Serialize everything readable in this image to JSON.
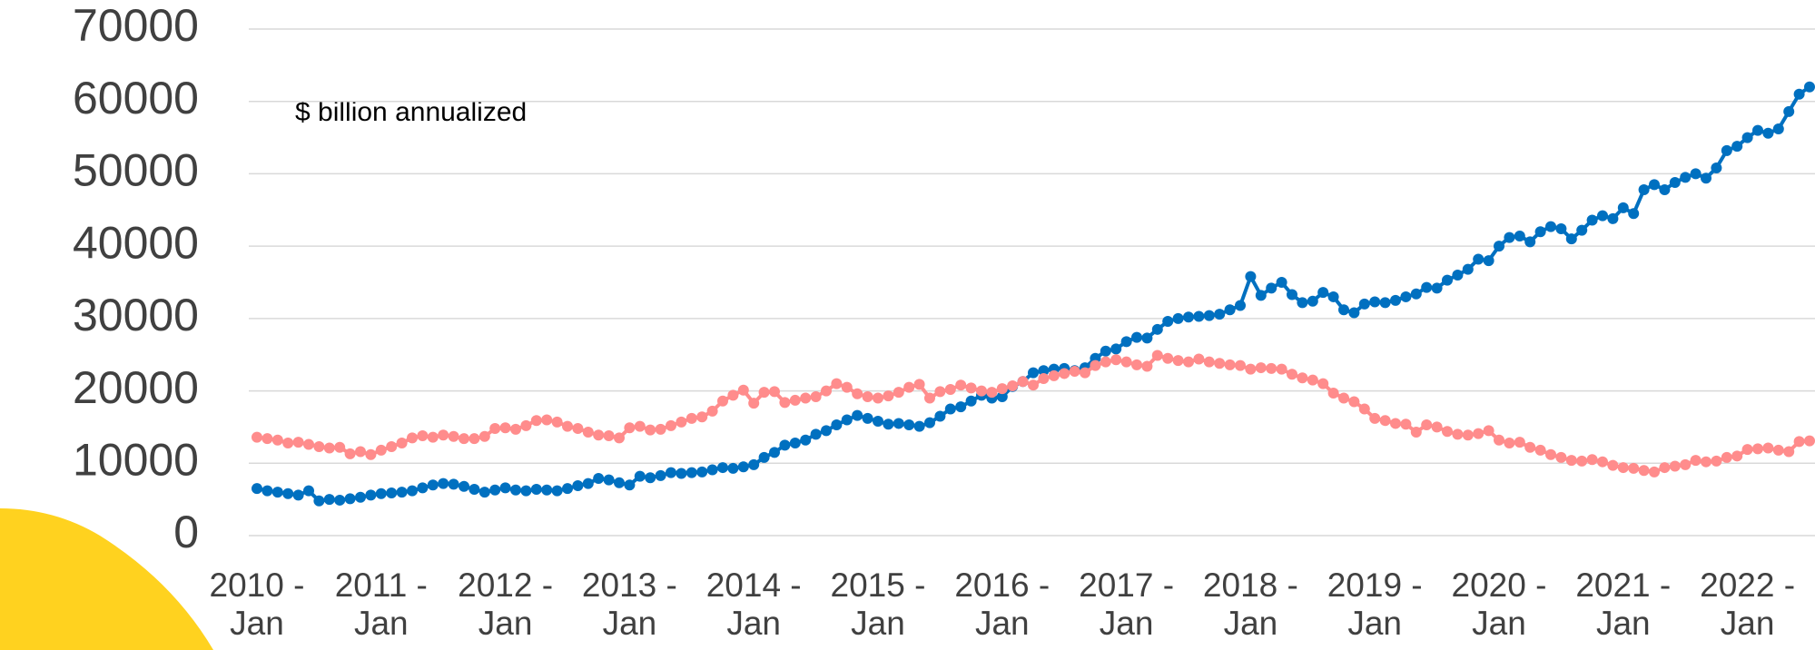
{
  "chart_data": {
    "type": "line",
    "annotation": "$ billion annualized",
    "categories": [
      "2010 - Jan",
      null,
      null,
      null,
      null,
      null,
      null,
      null,
      null,
      null,
      null,
      null,
      "2011 - Jan",
      null,
      null,
      null,
      null,
      null,
      null,
      null,
      null,
      null,
      null,
      null,
      "2012 - Jan",
      null,
      null,
      null,
      null,
      null,
      null,
      null,
      null,
      null,
      null,
      null,
      "2013 - Jan",
      null,
      null,
      null,
      null,
      null,
      null,
      null,
      null,
      null,
      null,
      null,
      "2014 - Jan",
      null,
      null,
      null,
      null,
      null,
      null,
      null,
      null,
      null,
      null,
      null,
      "2015 - Jan",
      null,
      null,
      null,
      null,
      null,
      null,
      null,
      null,
      null,
      null,
      null,
      "2016 - Jan",
      null,
      null,
      null,
      null,
      null,
      null,
      null,
      null,
      null,
      null,
      null,
      "2017 - Jan",
      null,
      null,
      null,
      null,
      null,
      null,
      null,
      null,
      null,
      null,
      null,
      "2018 - Jan",
      null,
      null,
      null,
      null,
      null,
      null,
      null,
      null,
      null,
      null,
      null,
      "2019 - Jan",
      null,
      null,
      null,
      null,
      null,
      null,
      null,
      null,
      null,
      null,
      null,
      "2020 - Jan",
      null,
      null,
      null,
      null,
      null,
      null,
      null,
      null,
      null,
      null,
      null,
      "2021 - Jan",
      null,
      null,
      null,
      null,
      null,
      null,
      null,
      null,
      null,
      null,
      null,
      "2022 - Jan",
      null,
      null,
      null,
      null,
      null,
      null
    ],
    "series": [
      {
        "color": "#0070c0",
        "values": [
          6500,
          6200,
          6000,
          5800,
          5600,
          6200,
          4800,
          5000,
          4900,
          5100,
          5300,
          5600,
          5800,
          5900,
          6000,
          6200,
          6600,
          7000,
          7200,
          7100,
          6800,
          6400,
          6000,
          6300,
          6600,
          6300,
          6200,
          6400,
          6300,
          6200,
          6500,
          6900,
          7200,
          7900,
          7700,
          7300,
          7000,
          8200,
          8000,
          8300,
          8700,
          8600,
          8700,
          8800,
          9100,
          9400,
          9300,
          9500,
          9800,
          10800,
          11500,
          12500,
          12800,
          13200,
          14000,
          14500,
          15300,
          16000,
          16600,
          16200,
          15800,
          15400,
          15500,
          15300,
          15100,
          15600,
          16500,
          17500,
          17800,
          18600,
          19400,
          19000,
          19200,
          20600,
          21300,
          22500,
          22800,
          23000,
          23100,
          22800,
          23200,
          24500,
          25500,
          25800,
          26800,
          27400,
          27300,
          28500,
          29600,
          30000,
          30200,
          30300,
          30400,
          30600,
          31200,
          31800,
          35800,
          33200,
          34200,
          35000,
          33300,
          32200,
          32400,
          33600,
          33000,
          31200,
          30800,
          32000,
          32300,
          32200,
          32500,
          33000,
          33400,
          34300,
          34200,
          35300,
          36000,
          36800,
          38200,
          38000,
          40000,
          41200,
          41400,
          40600,
          42000,
          42700,
          42400,
          41000,
          42200,
          43600,
          44200,
          43800,
          45300,
          44500,
          47800,
          48500,
          47800,
          48800,
          49500,
          50000,
          49400,
          50800,
          53200,
          53800,
          55000,
          56000,
          55600,
          56200,
          58600,
          61000,
          62000
        ]
      },
      {
        "color": "#ff8c8c",
        "values": [
          13600,
          13400,
          13200,
          12800,
          12900,
          12600,
          12300,
          12100,
          12200,
          11300,
          11600,
          11200,
          11800,
          12300,
          12800,
          13500,
          13800,
          13600,
          13900,
          13700,
          13400,
          13400,
          13700,
          14800,
          14900,
          14700,
          15200,
          15900,
          16000,
          15700,
          15100,
          14800,
          14300,
          13900,
          13800,
          13500,
          14900,
          15100,
          14600,
          14700,
          15200,
          15700,
          16200,
          16400,
          17200,
          18600,
          19400,
          20100,
          18300,
          19800,
          19900,
          18400,
          18700,
          19000,
          19200,
          20000,
          21000,
          20500,
          19600,
          19200,
          19000,
          19300,
          19800,
          20500,
          20900,
          19000,
          19900,
          20200,
          20800,
          20400,
          20000,
          19800,
          20300,
          20700,
          21300,
          20800,
          21700,
          22100,
          22400,
          22700,
          22500,
          23500,
          24000,
          24300,
          24000,
          23600,
          23400,
          24900,
          24500,
          24200,
          24000,
          24400,
          24000,
          23800,
          23600,
          23500,
          23000,
          23200,
          23100,
          23000,
          22300,
          21800,
          21500,
          21000,
          19700,
          19000,
          18500,
          17500,
          16200,
          15900,
          15500,
          15400,
          14300,
          15300,
          15000,
          14400,
          14000,
          13900,
          14100,
          14500,
          13200,
          12800,
          12900,
          12200,
          11800,
          11200,
          10800,
          10400,
          10300,
          10500,
          10200,
          9700,
          9400,
          9300,
          9000,
          8800,
          9400,
          9600,
          9800,
          10400,
          10200,
          10300,
          10800,
          11000,
          11900,
          12000,
          12100,
          11800,
          11600,
          13000,
          13100
        ]
      }
    ],
    "ylim": [
      0,
      70000
    ],
    "yticks": [
      0,
      10000,
      20000,
      30000,
      40000,
      50000,
      60000,
      70000
    ],
    "grid": true
  }
}
